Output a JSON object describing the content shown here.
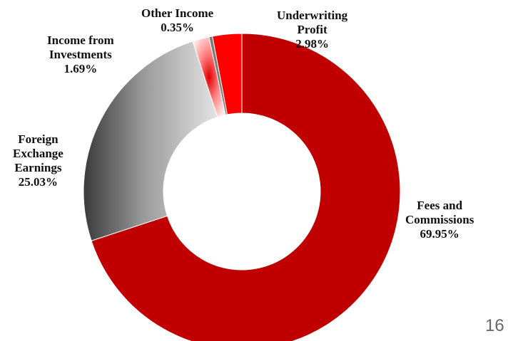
{
  "chart_data": {
    "type": "pie",
    "donut": true,
    "start": "12 o'clock, clockwise",
    "slices": [
      {
        "label": "Fees and Commissions",
        "value": 69.95,
        "pct_label": "69.95%",
        "color": "#c00000",
        "fill": "solid"
      },
      {
        "label": "Foreign Exchange Earnings",
        "value": 25.03,
        "pct_label": "25.03%",
        "color": "#b0b0b0",
        "fill": "grey-gradient"
      },
      {
        "label": "Income from Investments",
        "value": 1.69,
        "pct_label": "1.69%",
        "color": "#ff6666",
        "fill": "red-gradient"
      },
      {
        "label": "Other Income",
        "value": 0.35,
        "pct_label": "0.35%",
        "color": "#7a7a7a",
        "fill": "solid"
      },
      {
        "label": "Underwriting Profit",
        "value": 2.98,
        "pct_label": "2.98%",
        "color": "#ff0000",
        "fill": "solid"
      }
    ]
  },
  "labels": [
    {
      "name_lines": [
        "Fees and",
        "Commissions"
      ],
      "pct": "69.95%"
    },
    {
      "name_lines": [
        "Foreign",
        "Exchange",
        "Earnings"
      ],
      "pct": "25.03%"
    },
    {
      "name_lines": [
        "Income from",
        "Investments"
      ],
      "pct": "1.69%"
    },
    {
      "name_lines": [
        "Other Income"
      ],
      "pct": "0.35%"
    },
    {
      "name_lines": [
        "Underwriting",
        "Profit"
      ],
      "pct": "2.98%"
    }
  ],
  "page_number": "16"
}
